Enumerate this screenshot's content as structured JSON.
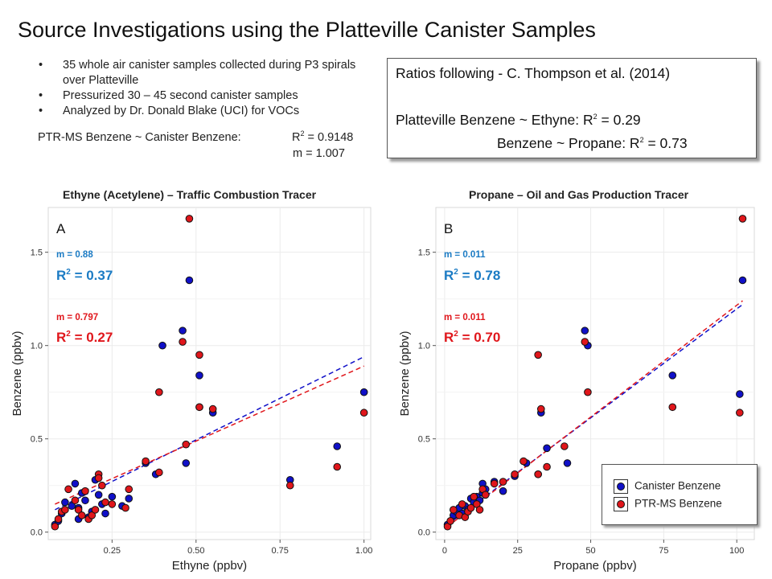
{
  "title": "Source Investigations using the Platteville Canister Samples",
  "bullets": [
    "35 whole air canister samples collected during P3 spirals over Platteville",
    "Pressurized 30 – 45 second canister samples",
    "Analyzed by Dr. Donald Blake (UCI) for VOCs"
  ],
  "ptr_line": {
    "label": "PTR-MS Benzene ~ Canister Benzene:",
    "r2_prefix": "R",
    "r2_sup": "2",
    "r2_value": " = 0.9148",
    "slope": "m = 1.007"
  },
  "ratio_box": {
    "line1": "Ratios following - C. Thompson et al. (2014)",
    "line2_prefix": "Platteville Benzene ~ Ethyne: R",
    "line2_sup": "2",
    "line2_suffix": " = 0.29",
    "line3_prefix": "Benzene ~ Propane: R",
    "line3_sup": "2",
    "line3_suffix": " = 0.73"
  },
  "legend": {
    "canister": "Canister Benzene",
    "ptr": "PTR-MS Benzene"
  },
  "colors": {
    "canister": "#1010c8",
    "ptr": "#e0161b",
    "stat_blue": "#1b7bc4",
    "stat_red": "#e0161b",
    "panel_bg": "#ffffff",
    "grid": "#ebebeb"
  },
  "chart_data": [
    {
      "type": "scatter",
      "panel_title": "Ethyne (Acetylene) – Traffic Combustion Tracer",
      "panel_label": "A",
      "xlabel": "Ethyne (ppbv)",
      "ylabel": "Benzene (ppbv)",
      "xlim": [
        0.06,
        1.02
      ],
      "ylim": [
        -0.04,
        1.74
      ],
      "x_ticks": [
        0.25,
        0.5,
        0.75,
        1.0
      ],
      "x_tick_labels": [
        "0.25",
        "0.50",
        "0.75",
        "1.00"
      ],
      "y_ticks": [
        0.0,
        0.5,
        1.0,
        1.5
      ],
      "y_tick_labels": [
        "0.0",
        "0.5",
        "1.0",
        "1.5"
      ],
      "grid": true,
      "annotations": {
        "canister_m": "m = 0.88",
        "canister_r2_prefix": "R",
        "canister_r2_sup": "2",
        "canister_r2_suffix": " = 0.37",
        "ptr_m": "m = 0.797",
        "ptr_r2_prefix": "R",
        "ptr_r2_sup": "2",
        "ptr_r2_suffix": " = 0.27"
      },
      "series": [
        {
          "name": "Canister Benzene",
          "points": [
            [
              0.08,
              0.04
            ],
            [
              0.09,
              0.06
            ],
            [
              0.1,
              0.1
            ],
            [
              0.11,
              0.16
            ],
            [
              0.13,
              0.14
            ],
            [
              0.14,
              0.26
            ],
            [
              0.15,
              0.13
            ],
            [
              0.15,
              0.07
            ],
            [
              0.16,
              0.21
            ],
            [
              0.17,
              0.17
            ],
            [
              0.18,
              0.08
            ],
            [
              0.19,
              0.11
            ],
            [
              0.2,
              0.28
            ],
            [
              0.21,
              0.2
            ],
            [
              0.22,
              0.15
            ],
            [
              0.23,
              0.1
            ],
            [
              0.25,
              0.19
            ],
            [
              0.28,
              0.14
            ],
            [
              0.3,
              0.18
            ],
            [
              0.35,
              0.37
            ],
            [
              0.38,
              0.31
            ],
            [
              0.4,
              1.0
            ],
            [
              0.46,
              1.08
            ],
            [
              0.47,
              0.37
            ],
            [
              0.48,
              1.35
            ],
            [
              0.51,
              0.84
            ],
            [
              0.51,
              0.67
            ],
            [
              0.55,
              0.64
            ],
            [
              0.78,
              0.28
            ],
            [
              0.92,
              0.46
            ],
            [
              1.0,
              0.75
            ]
          ],
          "fit": {
            "x": [
              0.08,
              1.0
            ],
            "y": [
              0.12,
              0.94
            ]
          }
        },
        {
          "name": "PTR-MS Benzene",
          "points": [
            [
              0.08,
              0.03
            ],
            [
              0.09,
              0.07
            ],
            [
              0.1,
              0.11
            ],
            [
              0.11,
              0.12
            ],
            [
              0.12,
              0.23
            ],
            [
              0.14,
              0.17
            ],
            [
              0.15,
              0.12
            ],
            [
              0.16,
              0.09
            ],
            [
              0.17,
              0.22
            ],
            [
              0.18,
              0.07
            ],
            [
              0.19,
              0.09
            ],
            [
              0.2,
              0.12
            ],
            [
              0.21,
              0.31
            ],
            [
              0.21,
              0.29
            ],
            [
              0.22,
              0.25
            ],
            [
              0.23,
              0.16
            ],
            [
              0.25,
              0.15
            ],
            [
              0.29,
              0.13
            ],
            [
              0.3,
              0.23
            ],
            [
              0.35,
              0.38
            ],
            [
              0.39,
              0.32
            ],
            [
              0.39,
              0.75
            ],
            [
              0.46,
              1.02
            ],
            [
              0.47,
              0.47
            ],
            [
              0.48,
              1.68
            ],
            [
              0.51,
              0.95
            ],
            [
              0.51,
              0.67
            ],
            [
              0.55,
              0.66
            ],
            [
              0.78,
              0.25
            ],
            [
              0.92,
              0.35
            ],
            [
              1.0,
              0.64
            ]
          ],
          "fit": {
            "x": [
              0.08,
              1.0
            ],
            "y": [
              0.15,
              0.89
            ]
          }
        }
      ]
    },
    {
      "type": "scatter",
      "panel_title": "Propane – Oil and Gas Production Tracer",
      "panel_label": "B",
      "xlabel": "Propane (ppbv)",
      "ylabel": "Benzene (ppbv)",
      "xlim": [
        -3,
        106
      ],
      "ylim": [
        -0.04,
        1.74
      ],
      "x_ticks": [
        0,
        25,
        50,
        75,
        100
      ],
      "x_tick_labels": [
        "0",
        "25",
        "50",
        "75",
        "100"
      ],
      "y_ticks": [
        0.0,
        0.5,
        1.0,
        1.5
      ],
      "y_tick_labels": [
        "0.0",
        "0.5",
        "1.0",
        "1.5"
      ],
      "grid": true,
      "annotations": {
        "canister_m": "m = 0.011",
        "canister_r2_prefix": "R",
        "canister_r2_sup": "2",
        "canister_r2_suffix": " = 0.78",
        "ptr_m": "m = 0.011",
        "ptr_r2_prefix": "R",
        "ptr_r2_sup": "2",
        "ptr_r2_suffix": " = 0.70"
      },
      "series": [
        {
          "name": "Canister Benzene",
          "points": [
            [
              1,
              0.04
            ],
            [
              3,
              0.09
            ],
            [
              4,
              0.11
            ],
            [
              5,
              0.13
            ],
            [
              6,
              0.1
            ],
            [
              7,
              0.14
            ],
            [
              8,
              0.12
            ],
            [
              9,
              0.18
            ],
            [
              10,
              0.16
            ],
            [
              11,
              0.19
            ],
            [
              12,
              0.17
            ],
            [
              13,
              0.26
            ],
            [
              13,
              0.21
            ],
            [
              14,
              0.23
            ],
            [
              17,
              0.27
            ],
            [
              20,
              0.22
            ],
            [
              24,
              0.3
            ],
            [
              28,
              0.37
            ],
            [
              32,
              0.31
            ],
            [
              33,
              0.64
            ],
            [
              35,
              0.45
            ],
            [
              42,
              0.37
            ],
            [
              48,
              1.08
            ],
            [
              49,
              1.0
            ],
            [
              78,
              0.84
            ],
            [
              101,
              0.74
            ],
            [
              102,
              1.35
            ]
          ],
          "fit": {
            "x": [
              1,
              102
            ],
            "y": [
              0.04,
              1.22
            ]
          }
        },
        {
          "name": "PTR-MS Benzene",
          "points": [
            [
              1,
              0.03
            ],
            [
              2,
              0.06
            ],
            [
              3,
              0.12
            ],
            [
              5,
              0.09
            ],
            [
              6,
              0.15
            ],
            [
              7,
              0.08
            ],
            [
              8,
              0.11
            ],
            [
              9,
              0.13
            ],
            [
              10,
              0.19
            ],
            [
              11,
              0.15
            ],
            [
              12,
              0.12
            ],
            [
              13,
              0.23
            ],
            [
              14,
              0.2
            ],
            [
              17,
              0.26
            ],
            [
              20,
              0.27
            ],
            [
              24,
              0.31
            ],
            [
              27,
              0.38
            ],
            [
              32,
              0.31
            ],
            [
              32,
              0.95
            ],
            [
              33,
              0.66
            ],
            [
              35,
              0.35
            ],
            [
              41,
              0.46
            ],
            [
              48,
              1.02
            ],
            [
              49,
              0.75
            ],
            [
              78,
              0.67
            ],
            [
              101,
              0.64
            ],
            [
              102,
              1.68
            ]
          ],
          "fit": {
            "x": [
              1,
              102
            ],
            "y": [
              0.03,
              1.24
            ]
          }
        }
      ]
    }
  ]
}
